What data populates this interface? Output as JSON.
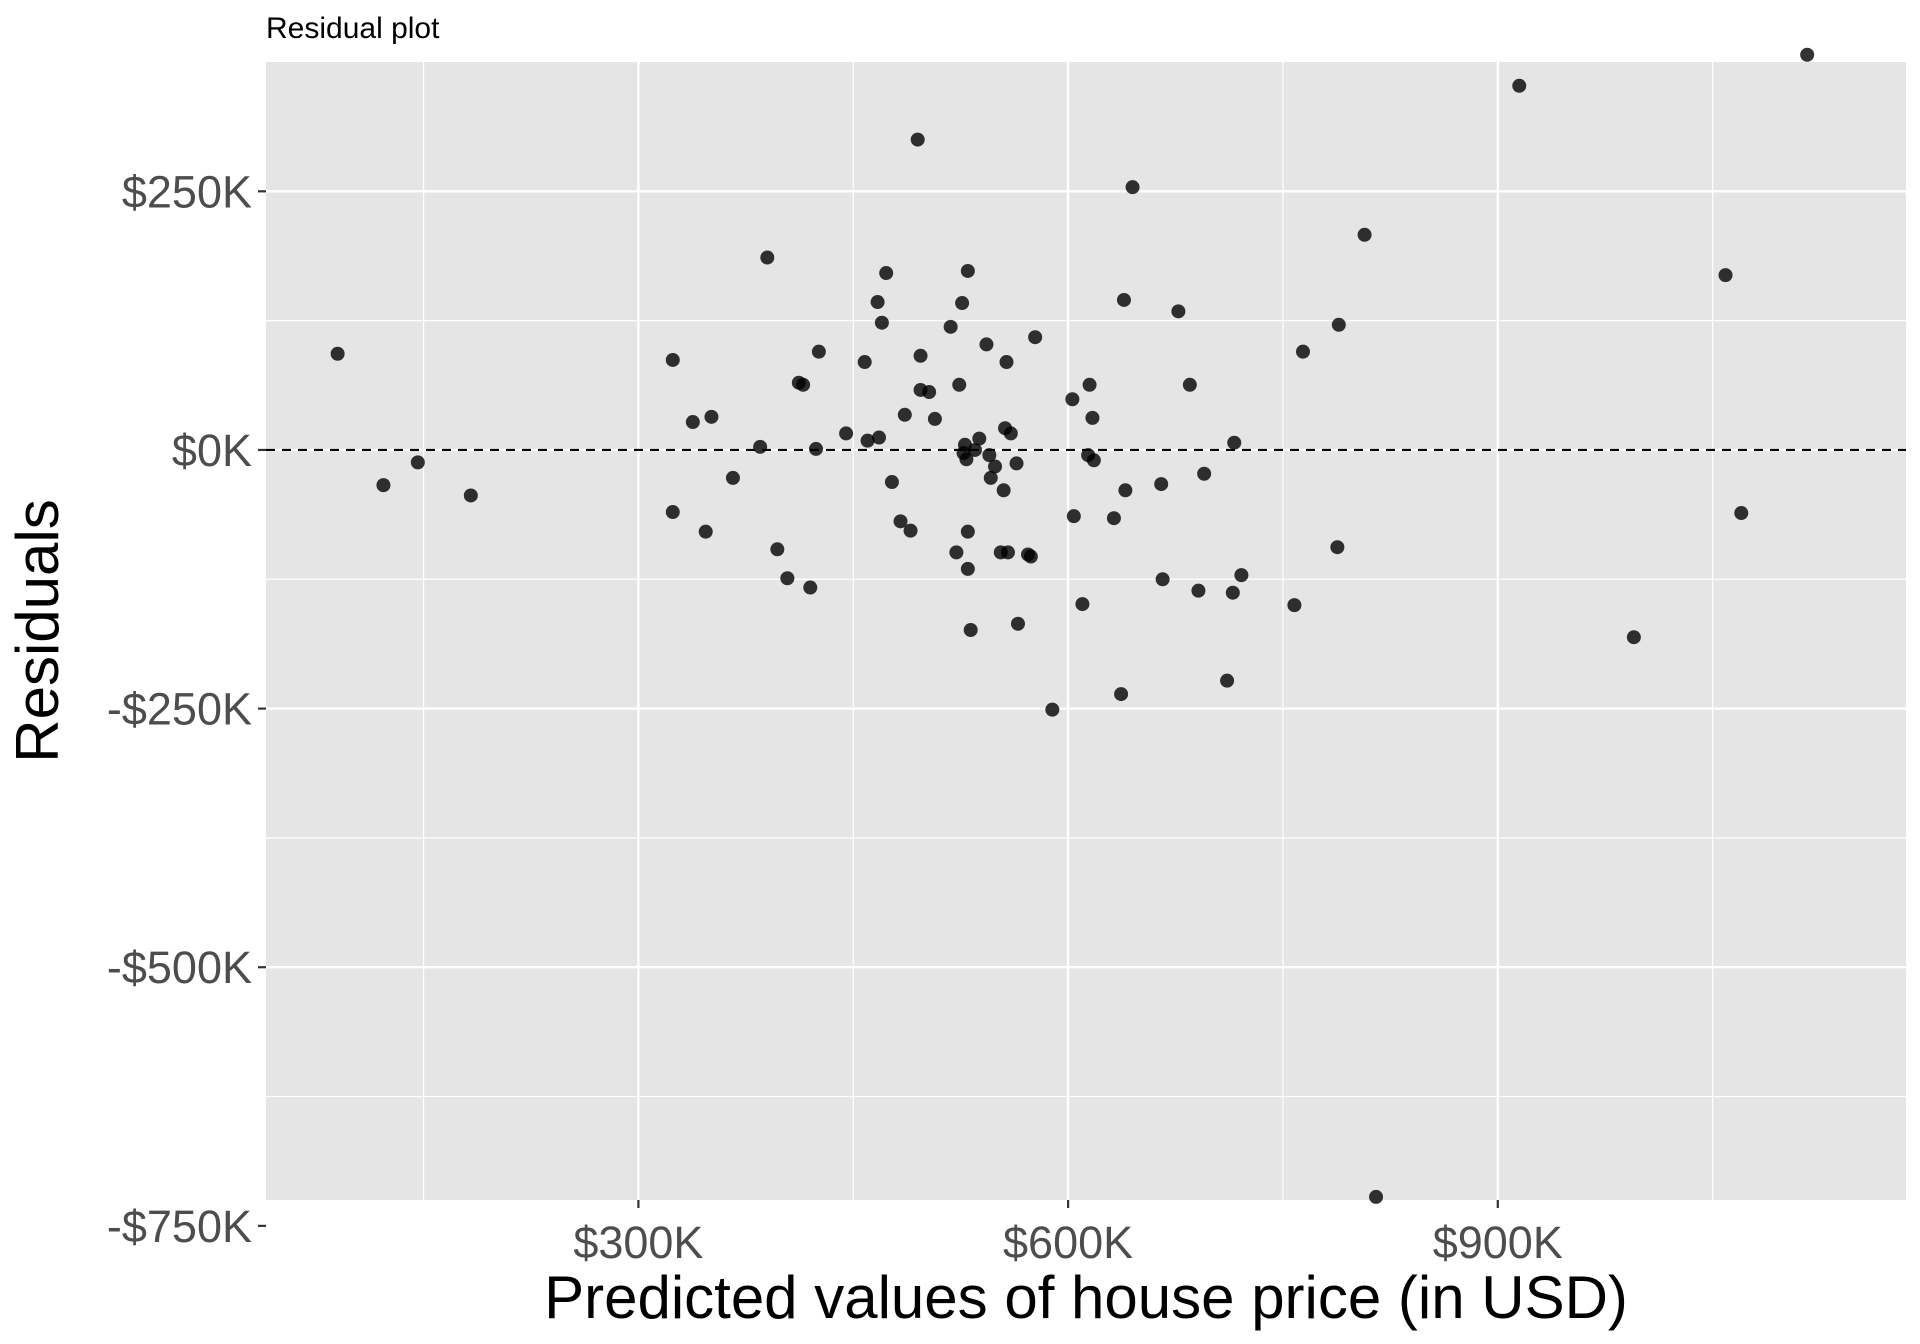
{
  "chart_data": {
    "type": "scatter",
    "title": "Residual plot",
    "xlabel": "Predicted values of house price (in USD)",
    "ylabel": "Residuals",
    "xlim": [
      40000,
      1185000
    ],
    "ylim": [
      -750000,
      350000
    ],
    "x_ticks": [
      {
        "value": 300000,
        "label": "$300K"
      },
      {
        "value": 600000,
        "label": "$600K"
      },
      {
        "value": 900000,
        "label": "$900K"
      }
    ],
    "x_minor_ticks": [
      150000,
      450000,
      750000,
      1050000
    ],
    "y_ticks": [
      {
        "value": 250000,
        "label": "$250K"
      },
      {
        "value": 0,
        "label": "$0K"
      },
      {
        "value": -250000,
        "label": "-$250K"
      },
      {
        "value": -500000,
        "label": "-$500K"
      },
      {
        "value": -750000,
        "label": "-$750K"
      }
    ],
    "y_minor_ticks": [
      125000,
      -125000,
      -375000,
      -625000
    ],
    "reference_line": {
      "y": 0,
      "style": "dashed"
    },
    "grid": true,
    "colors": {
      "panel": "#e5e5e5",
      "grid": "#ffffff",
      "point": "#000000",
      "tick_text": "#4d4d4d"
    },
    "points": [
      {
        "x": 90000,
        "y": 93000
      },
      {
        "x": 122000,
        "y": -34000
      },
      {
        "x": 146000,
        "y": -12000
      },
      {
        "x": 183000,
        "y": -44000
      },
      {
        "x": 324000,
        "y": 87000
      },
      {
        "x": 324000,
        "y": -60000
      },
      {
        "x": 338000,
        "y": 27000
      },
      {
        "x": 347000,
        "y": -79000
      },
      {
        "x": 351000,
        "y": 32000
      },
      {
        "x": 366000,
        "y": -27000
      },
      {
        "x": 385000,
        "y": 3000
      },
      {
        "x": 390000,
        "y": 186000
      },
      {
        "x": 397000,
        "y": -96000
      },
      {
        "x": 404000,
        "y": -124000
      },
      {
        "x": 412000,
        "y": 65000
      },
      {
        "x": 415000,
        "y": 63000
      },
      {
        "x": 420000,
        "y": -133000
      },
      {
        "x": 424000,
        "y": 1000
      },
      {
        "x": 426000,
        "y": 95000
      },
      {
        "x": 445000,
        "y": 16000
      },
      {
        "x": 458000,
        "y": 85000
      },
      {
        "x": 460000,
        "y": 9000
      },
      {
        "x": 467000,
        "y": 143000
      },
      {
        "x": 468000,
        "y": 12000
      },
      {
        "x": 470000,
        "y": 123000
      },
      {
        "x": 473000,
        "y": 171000
      },
      {
        "x": 477000,
        "y": -31000
      },
      {
        "x": 483000,
        "y": -69000
      },
      {
        "x": 486000,
        "y": 34000
      },
      {
        "x": 490000,
        "y": -78000
      },
      {
        "x": 495000,
        "y": 300000
      },
      {
        "x": 497000,
        "y": 91000
      },
      {
        "x": 497000,
        "y": 58000
      },
      {
        "x": 503000,
        "y": 56000
      },
      {
        "x": 507000,
        "y": 30000
      },
      {
        "x": 518000,
        "y": 119000
      },
      {
        "x": 522000,
        "y": -99000
      },
      {
        "x": 524000,
        "y": 63000
      },
      {
        "x": 526000,
        "y": 142000
      },
      {
        "x": 527000,
        "y": -3000
      },
      {
        "x": 528000,
        "y": 5000
      },
      {
        "x": 529000,
        "y": -9000
      },
      {
        "x": 530000,
        "y": 173000
      },
      {
        "x": 530000,
        "y": -79000
      },
      {
        "x": 530000,
        "y": -115000
      },
      {
        "x": 532000,
        "y": -174000
      },
      {
        "x": 535000,
        "y": 0
      },
      {
        "x": 538000,
        "y": 11000
      },
      {
        "x": 543000,
        "y": 102000
      },
      {
        "x": 545000,
        "y": -5000
      },
      {
        "x": 546000,
        "y": -27000
      },
      {
        "x": 549000,
        "y": -16000
      },
      {
        "x": 553000,
        "y": -99000
      },
      {
        "x": 555000,
        "y": -39000
      },
      {
        "x": 556000,
        "y": 21000
      },
      {
        "x": 557000,
        "y": 85000
      },
      {
        "x": 558000,
        "y": -99000
      },
      {
        "x": 560000,
        "y": 16000
      },
      {
        "x": 564000,
        "y": -13000
      },
      {
        "x": 565000,
        "y": -168000
      },
      {
        "x": 572000,
        "y": -101000
      },
      {
        "x": 574000,
        "y": -103000
      },
      {
        "x": 577000,
        "y": 109000
      },
      {
        "x": 589000,
        "y": -251000
      },
      {
        "x": 603000,
        "y": 49000
      },
      {
        "x": 604000,
        "y": -64000
      },
      {
        "x": 610000,
        "y": -149000
      },
      {
        "x": 614000,
        "y": -5000
      },
      {
        "x": 615000,
        "y": 63000
      },
      {
        "x": 617000,
        "y": 31000
      },
      {
        "x": 618000,
        "y": -10000
      },
      {
        "x": 632000,
        "y": -66000
      },
      {
        "x": 637000,
        "y": -236000
      },
      {
        "x": 639000,
        "y": 145000
      },
      {
        "x": 640000,
        "y": -39000
      },
      {
        "x": 645000,
        "y": 254000
      },
      {
        "x": 665000,
        "y": -33000
      },
      {
        "x": 666000,
        "y": -125000
      },
      {
        "x": 677000,
        "y": 134000
      },
      {
        "x": 685000,
        "y": 63000
      },
      {
        "x": 691000,
        "y": -136000
      },
      {
        "x": 695000,
        "y": -23000
      },
      {
        "x": 711000,
        "y": -223000
      },
      {
        "x": 715000,
        "y": -138000
      },
      {
        "x": 716000,
        "y": 7000
      },
      {
        "x": 721000,
        "y": -121000
      },
      {
        "x": 758000,
        "y": -150000
      },
      {
        "x": 764000,
        "y": 95000
      },
      {
        "x": 788000,
        "y": -94000
      },
      {
        "x": 789000,
        "y": 121000
      },
      {
        "x": 807000,
        "y": 208000
      },
      {
        "x": 815000,
        "y": -722000
      },
      {
        "x": 915000,
        "y": 352000
      },
      {
        "x": 995000,
        "y": -181000
      },
      {
        "x": 1059000,
        "y": 169000
      },
      {
        "x": 1070000,
        "y": -61000
      },
      {
        "x": 1116000,
        "y": 382000
      }
    ]
  }
}
